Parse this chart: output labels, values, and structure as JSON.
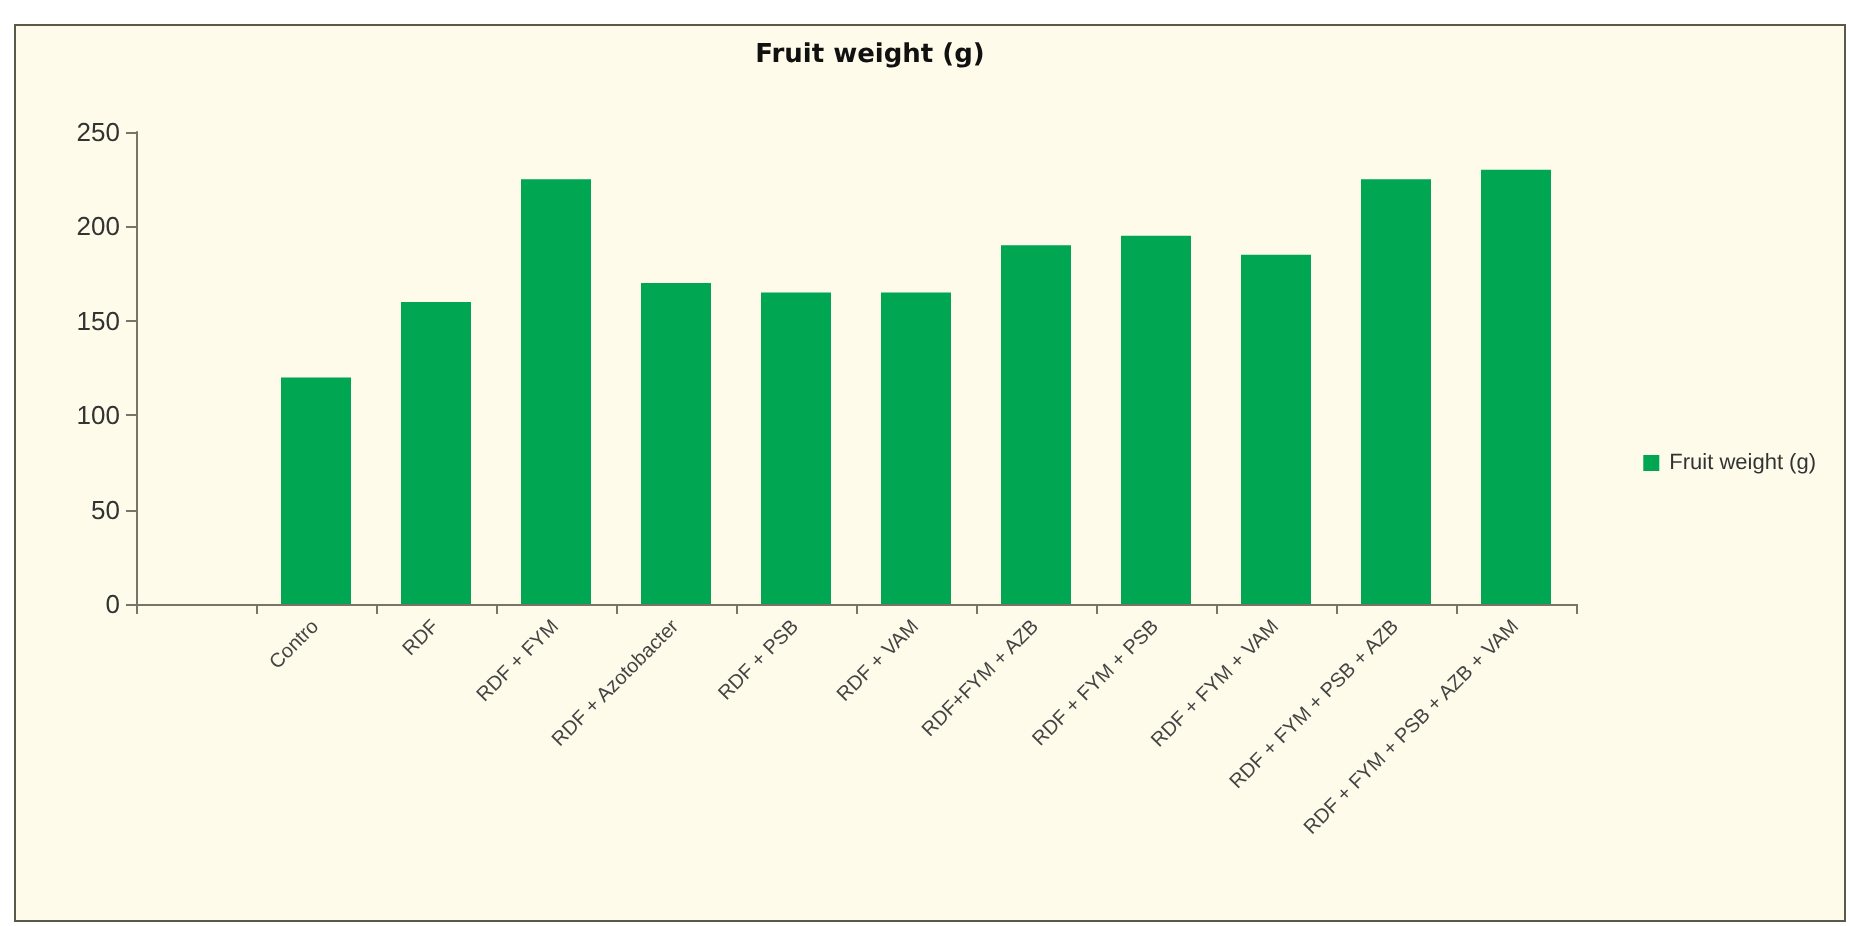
{
  "chart_data": {
    "type": "bar",
    "title": "Fruit weight (g)",
    "categories": [
      null,
      "Contro",
      "RDF",
      "RDF + FYM",
      "RDF + Azotobacter",
      "RDF + PSB",
      "RDF + VAM",
      "RDF+FYM + AZB",
      "RDF + FYM + PSB",
      "RDF + FYM + VAM",
      "RDF + FYM + PSB + AZB",
      "RDF + FYM + PSB + AZB + VAM"
    ],
    "series": [
      {
        "name": "Fruit weight (g)",
        "color": "#00a651",
        "values": [
          null,
          120,
          160,
          225,
          170,
          165,
          165,
          190,
          195,
          185,
          225,
          230
        ]
      }
    ],
    "ylim": [
      0,
      250
    ],
    "yticks": [
      0,
      50,
      100,
      150,
      200,
      250
    ],
    "grid": false,
    "legend": "right"
  }
}
